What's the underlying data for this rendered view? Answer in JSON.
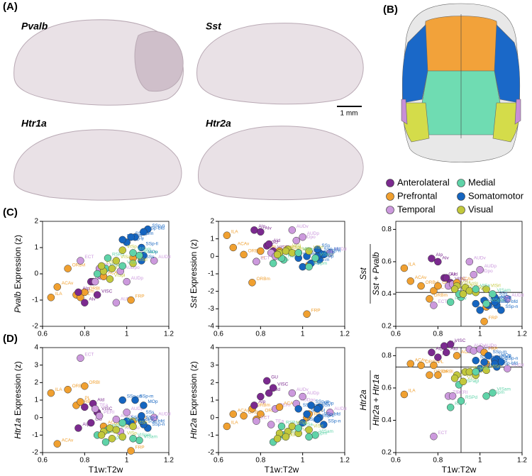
{
  "panels": {
    "a": "(A)",
    "b": "(B)",
    "c": "(C)",
    "d": "(D)"
  },
  "brain_sections": [
    {
      "label": "Pvalb"
    },
    {
      "label": "Sst"
    },
    {
      "label": "Htr1a"
    },
    {
      "label": "Htr2a"
    }
  ],
  "scale_bar": "1 mm",
  "legend": [
    {
      "name": "Anterolateral",
      "color": "#7b2a8f"
    },
    {
      "name": "Medial",
      "color": "#5fd3a8"
    },
    {
      "name": "Prefrontal",
      "color": "#f0a030"
    },
    {
      "name": "Somatomotor",
      "color": "#1565c0"
    },
    {
      "name": "Temporal",
      "color": "#cc99dd"
    },
    {
      "name": "Visual",
      "color": "#c2c83c"
    }
  ],
  "regions": [
    {
      "name": "ILA",
      "color": "#f0a030",
      "x": 0.64
    },
    {
      "name": "ACAv",
      "color": "#f0a030",
      "x": 0.67
    },
    {
      "name": "ORBvl",
      "color": "#f0a030",
      "x": 0.72
    },
    {
      "name": "ORBm",
      "color": "#f0a030",
      "x": 0.76
    },
    {
      "name": "PL",
      "color": "#f0a030",
      "x": 0.78
    },
    {
      "name": "ORBl",
      "color": "#f0a030",
      "x": 0.8
    },
    {
      "name": "AIp",
      "color": "#7b2a8f",
      "x": 0.77
    },
    {
      "name": "AIv",
      "color": "#7b2a8f",
      "x": 0.8
    },
    {
      "name": "ECT",
      "color": "#cc99dd",
      "x": 0.78
    },
    {
      "name": "GU",
      "color": "#7b2a8f",
      "x": 0.83
    },
    {
      "name": "AId",
      "color": "#7b2a8f",
      "x": 0.84
    },
    {
      "name": "VISC",
      "color": "#7b2a8f",
      "x": 0.86
    },
    {
      "name": "TEa",
      "color": "#cc99dd",
      "x": 0.85
    },
    {
      "name": "PERI",
      "color": "#cc99dd",
      "x": 0.87
    },
    {
      "name": "ACAd",
      "color": "#f0a030",
      "x": 0.89
    },
    {
      "name": "RSPv",
      "color": "#5fd3a8",
      "x": 0.86
    },
    {
      "name": "RSPd",
      "color": "#5fd3a8",
      "x": 0.91
    },
    {
      "name": "RSPagl",
      "color": "#5fd3a8",
      "x": 0.9
    },
    {
      "name": "VISli",
      "color": "#c2c83c",
      "x": 0.89
    },
    {
      "name": "VISpor",
      "color": "#c2c83c",
      "x": 0.88
    },
    {
      "name": "AUDv",
      "color": "#cc99dd",
      "x": 0.95
    },
    {
      "name": "VISl",
      "color": "#c2c83c",
      "x": 0.93
    },
    {
      "name": "VISpl",
      "color": "#c2c83c",
      "x": 0.92
    },
    {
      "name": "AUDpo",
      "color": "#cc99dd",
      "x": 0.97
    },
    {
      "name": "AUDp",
      "color": "#cc99dd",
      "x": 1.0
    },
    {
      "name": "AUDd",
      "color": "#cc99dd",
      "x": 1.13
    },
    {
      "name": "FRP",
      "color": "#f0a030",
      "x": 1.02
    },
    {
      "name": "MOs",
      "color": "#f0a030",
      "x": 1.03
    },
    {
      "name": "MOp",
      "color": "#1565c0",
      "x": 1.08
    },
    {
      "name": "SSp-n",
      "color": "#1565c0",
      "x": 1.1
    },
    {
      "name": "SSp-bfd",
      "color": "#1565c0",
      "x": 1.08
    },
    {
      "name": "SSp-ll",
      "color": "#1565c0",
      "x": 1.07
    },
    {
      "name": "SSp-m",
      "color": "#1565c0",
      "x": 1.04
    },
    {
      "name": "SSp-ul",
      "color": "#1565c0",
      "x": 1.02
    },
    {
      "name": "SSp-tr",
      "color": "#1565c0",
      "x": 1.0
    },
    {
      "name": "SSp-un",
      "color": "#1565c0",
      "x": 0.98
    },
    {
      "name": "SSs",
      "color": "#1565c0",
      "x": 1.07
    },
    {
      "name": "VISal",
      "color": "#c2c83c",
      "x": 0.95
    },
    {
      "name": "VISam",
      "color": "#5fd3a8",
      "x": 1.06
    },
    {
      "name": "VISp",
      "color": "#c2c83c",
      "x": 0.98
    },
    {
      "name": "VISrl",
      "color": "#c2c83c",
      "x": 1.03
    },
    {
      "name": "VISa",
      "color": "#5fd3a8",
      "x": 0.98
    },
    {
      "name": "VISpm",
      "color": "#5fd3a8",
      "x": 1.03
    }
  ],
  "chart_data": [
    {
      "type": "scatter",
      "y_label_gene": "Pvalb",
      "y_label": "Expression (z)",
      "xlim": [
        0.6,
        1.2
      ],
      "xticks": [
        0.6,
        0.8,
        1,
        1.2
      ],
      "ylim": [
        -2,
        2
      ],
      "yticks": [
        -2,
        -1,
        0,
        1,
        2
      ],
      "values": [
        -0.9,
        -0.5,
        0.2,
        -0.8,
        -0.9,
        -0.7,
        -0.7,
        -1.1,
        0.5,
        -0.3,
        -0.3,
        -0.8,
        -0.3,
        0.2,
        -0.1,
        0.0,
        0.6,
        0.2,
        0.1,
        0.3,
        -1.1,
        0.2,
        -0.2,
        0.1,
        -0.3,
        0.5,
        -1.0,
        0.6,
        0.7,
        1.7,
        1.6,
        1.0,
        1.4,
        1.4,
        1.2,
        1.3,
        0.5,
        0.5,
        0.7,
        0.9,
        0.4,
        0.3,
        0.8
      ]
    },
    {
      "type": "scatter",
      "y_label_gene": "Sst",
      "y_label": "Expression (z)",
      "xlim": [
        0.6,
        1.2
      ],
      "xticks": [
        0.6,
        0.8,
        1,
        1.2
      ],
      "ylim": [
        -4,
        2
      ],
      "yticks": [
        -4,
        -3,
        -2,
        -1,
        0,
        1,
        2
      ],
      "values": [
        1.2,
        0.5,
        0.1,
        -1.5,
        -0.3,
        0.3,
        1.5,
        1.4,
        -0.3,
        0.6,
        0.7,
        0.3,
        0.2,
        0.0,
        0.3,
        -0.4,
        -0.2,
        -0.1,
        0.2,
        0.1,
        1.5,
        0.4,
        0.3,
        0.9,
        1.1,
        0.2,
        -3.3,
        -0.5,
        -0.2,
        0.1,
        0.2,
        0.0,
        -0.4,
        0.0,
        -0.6,
        -0.1,
        0.4,
        0.2,
        -0.1,
        0.2,
        0.3,
        0.2,
        -0.6
      ]
    },
    {
      "type": "scatter",
      "y_label_numerator": "Sst",
      "y_label_denominator": "Sst + Pvalb",
      "xlim": [
        0.6,
        1.2
      ],
      "xticks": [
        0.6,
        0.8,
        1,
        1.2
      ],
      "ylim": [
        0.2,
        0.85
      ],
      "yticks": [
        0.2,
        0.4,
        0.6,
        0.8
      ],
      "vline": 0.91,
      "hline": 0.41,
      "values": [
        0.56,
        0.48,
        0.45,
        0.37,
        0.42,
        0.45,
        0.62,
        0.6,
        0.33,
        0.5,
        0.5,
        0.47,
        0.45,
        0.46,
        0.47,
        0.35,
        0.38,
        0.4,
        0.45,
        0.43,
        0.6,
        0.44,
        0.4,
        0.52,
        0.55,
        0.37,
        0.23,
        0.32,
        0.36,
        0.3,
        0.33,
        0.35,
        0.33,
        0.36,
        0.3,
        0.34,
        0.38,
        0.42,
        0.4,
        0.41,
        0.43,
        0.43,
        0.34
      ]
    },
    {
      "type": "scatter",
      "y_label_gene": "Htr1a",
      "y_label": "Expression (z)",
      "x_label": "T1w:T2w",
      "xlim": [
        0.6,
        1.2
      ],
      "xticks": [
        0.6,
        0.8,
        1,
        1.2
      ],
      "ylim": [
        -2,
        4
      ],
      "yticks": [
        -2,
        -1,
        0,
        1,
        2,
        3,
        4
      ],
      "values": [
        1.4,
        -1.5,
        1.6,
        0.7,
        0.9,
        1.8,
        -0.6,
        0.6,
        3.4,
        -0.3,
        0.8,
        0.3,
        0.5,
        0.1,
        -0.5,
        -1.0,
        -0.7,
        -1.4,
        -0.8,
        -1.0,
        -0.1,
        -1.2,
        -0.6,
        -0.8,
        0.3,
        0.0,
        -1.9,
        -0.2,
        0.7,
        -0.6,
        -0.4,
        -0.2,
        1.0,
        -0.3,
        -0.2,
        1.0,
        0.1,
        -0.7,
        -1.3,
        -1.1,
        -0.5,
        -0.3,
        -1.2
      ]
    },
    {
      "type": "scatter",
      "y_label_gene": "Htr2a",
      "y_label": "Expression (z)",
      "x_label": "T1w:T2w",
      "xlim": [
        0.6,
        1.2
      ],
      "xticks": [
        0.6,
        0.8,
        1,
        1.2
      ],
      "ylim": [
        -2,
        4
      ],
      "yticks": [
        -2,
        -1,
        0,
        1,
        2,
        3,
        4
      ],
      "values": [
        -0.5,
        0.2,
        0.1,
        0.5,
        -0.1,
        0.2,
        0.7,
        1.2,
        -0.2,
        2.1,
        1.4,
        1.7,
        -0.4,
        0.5,
        0.6,
        -1.4,
        -1.0,
        -0.5,
        -0.9,
        -1.2,
        1.4,
        -0.8,
        -1.1,
        0.8,
        1.2,
        0.3,
        0.0,
        0.2,
        0.6,
        -0.4,
        0.0,
        -0.1,
        0.7,
        0.2,
        -0.3,
        0.5,
        0.5,
        -0.5,
        -1.0,
        -0.9,
        -0.7,
        -0.6,
        -1.1
      ]
    },
    {
      "type": "scatter",
      "y_label_numerator": "Htr2a",
      "y_label_denominator": "Htr2a + Htr1a",
      "x_label": "T1w:T2w",
      "xlim": [
        0.6,
        1.2
      ],
      "xticks": [
        0.6,
        0.8,
        1,
        1.2
      ],
      "ylim": [
        0.2,
        0.85
      ],
      "yticks": [
        0.2,
        0.4,
        0.6,
        0.8
      ],
      "vline": 0.91,
      "hline": 0.73,
      "values": [
        0.56,
        0.75,
        0.74,
        0.68,
        0.74,
        0.68,
        0.82,
        0.79,
        0.3,
        0.86,
        0.82,
        0.87,
        0.55,
        0.55,
        0.8,
        0.48,
        0.52,
        0.62,
        0.68,
        0.66,
        0.84,
        0.7,
        0.64,
        0.83,
        0.84,
        0.72,
        0.82,
        0.75,
        0.78,
        0.76,
        0.73,
        0.77,
        0.8,
        0.76,
        0.72,
        0.77,
        0.75,
        0.7,
        0.57,
        0.68,
        0.71,
        0.7,
        0.55
      ]
    }
  ]
}
